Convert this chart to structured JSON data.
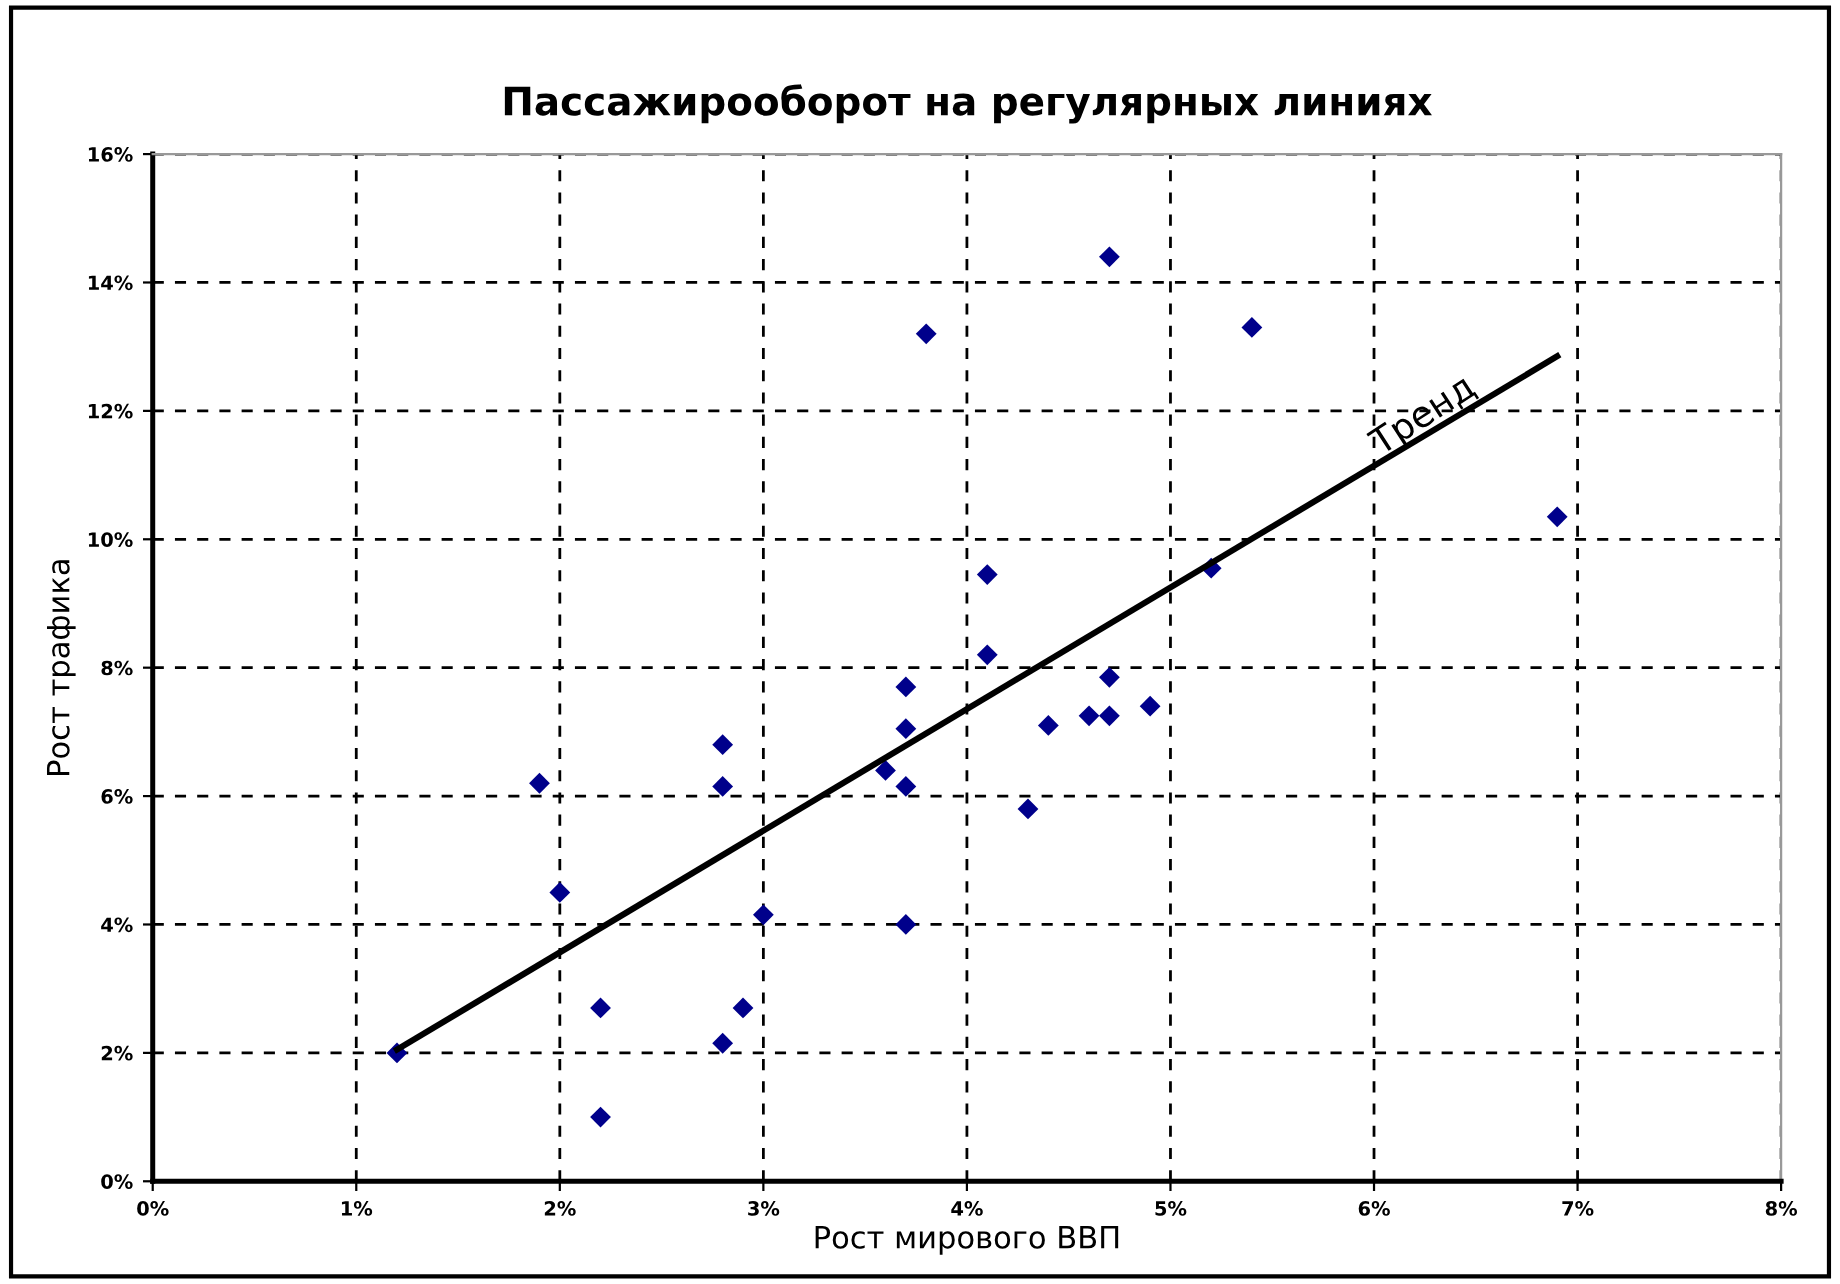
{
  "chart_data": {
    "type": "scatter",
    "title": "Пассажирооборот на регулярных линиях",
    "xlabel": "Рост мирового ВВП",
    "ylabel": "Рост трафика",
    "xlim": [
      0,
      8
    ],
    "ylim": [
      0,
      16
    ],
    "xticks": [
      {
        "value": 0,
        "label": "0%"
      },
      {
        "value": 1,
        "label": "1%"
      },
      {
        "value": 2,
        "label": "2%"
      },
      {
        "value": 3,
        "label": "3%"
      },
      {
        "value": 4,
        "label": "4%"
      },
      {
        "value": 5,
        "label": "5%"
      },
      {
        "value": 6,
        "label": "6%"
      },
      {
        "value": 7,
        "label": "7%"
      },
      {
        "value": 8,
        "label": "8%"
      }
    ],
    "yticks": [
      {
        "value": 0,
        "label": "0%"
      },
      {
        "value": 2,
        "label": "2%"
      },
      {
        "value": 4,
        "label": "4%"
      },
      {
        "value": 6,
        "label": "6%"
      },
      {
        "value": 8,
        "label": "8%"
      },
      {
        "value": 10,
        "label": "10%"
      },
      {
        "value": 12,
        "label": "12%"
      },
      {
        "value": 14,
        "label": "14%"
      },
      {
        "value": 16,
        "label": "16%"
      }
    ],
    "grid": true,
    "marker": "diamond",
    "series": [
      {
        "color": "#00008b",
        "x": [
          1.2,
          1.9,
          2.0,
          2.2,
          2.2,
          2.8,
          2.8,
          2.8,
          2.9,
          3.0,
          3.6,
          3.7,
          3.7,
          3.7,
          3.7,
          3.8,
          4.1,
          4.1,
          4.3,
          4.4,
          4.6,
          4.7,
          4.7,
          4.7,
          4.9,
          5.2,
          5.4,
          6.9
        ],
        "values": [
          2.0,
          6.2,
          4.5,
          2.7,
          1.0,
          6.8,
          6.15,
          2.15,
          2.7,
          4.15,
          6.4,
          7.7,
          7.05,
          6.15,
          4.0,
          13.2,
          9.45,
          8.2,
          5.8,
          7.1,
          7.25,
          7.25,
          7.85,
          14.4,
          7.4,
          9.55,
          13.3,
          10.35
        ]
      },
      {
        "type": "line",
        "color": "#000000",
        "marker": "none",
        "x": [
          1.2,
          6.9
        ],
        "values": [
          2.05,
          12.85
        ]
      }
    ],
    "annotations": [
      "Тренд"
    ]
  }
}
